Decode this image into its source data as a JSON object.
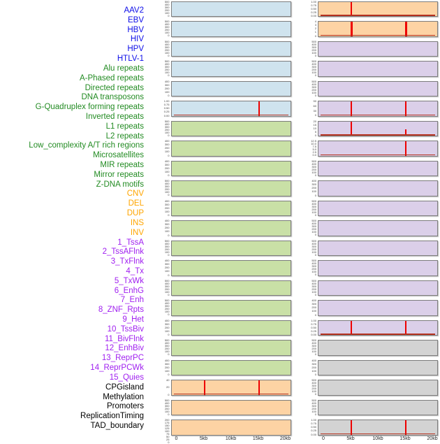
{
  "colors": {
    "label_virus": "#0d0de8",
    "label_repeat": "#228b22",
    "label_sv": "#ffa500",
    "label_chromhmm": "#a020f0",
    "label_other": "#000000",
    "panel_blue": "#cfe3ee",
    "panel_green": "#c9e0a6",
    "panel_orange": "#fdd3a4",
    "panel_purple": "#dbcfe9",
    "panel_gray": "#d3d3d3",
    "panel_border": "#7d7d7d",
    "red_marker": "#ee0000",
    "red_baseline": "#b5311f",
    "tick_text": "#3f3f3f"
  },
  "chart_data": {
    "type": "line",
    "layout": "small-multiples: 44 genomic track labels, 2 columns of 22 mini panels, one panel per 2 labels",
    "x_axis": {
      "ticks": [
        "0",
        "5kb",
        "10kb",
        "15kb",
        "20kb"
      ],
      "range_kb": [
        0,
        20
      ],
      "grid": false
    },
    "track_labels": [
      {
        "text": "AAV2",
        "group": "virus"
      },
      {
        "text": "EBV",
        "group": "virus"
      },
      {
        "text": "HBV",
        "group": "virus"
      },
      {
        "text": "HIV",
        "group": "virus"
      },
      {
        "text": "HPV",
        "group": "virus"
      },
      {
        "text": "HTLV-1",
        "group": "virus"
      },
      {
        "text": "Alu repeats",
        "group": "repeat"
      },
      {
        "text": "A-Phased repeats",
        "group": "repeat"
      },
      {
        "text": "Directed repeats",
        "group": "repeat"
      },
      {
        "text": "DNA transposons",
        "group": "repeat"
      },
      {
        "text": "G-Quadruplex forming repeats",
        "group": "repeat"
      },
      {
        "text": "Inverted repeats",
        "group": "repeat"
      },
      {
        "text": "L1 repeats",
        "group": "repeat"
      },
      {
        "text": "L2 repeats",
        "group": "repeat"
      },
      {
        "text": "Low_complexity A/T rich regions",
        "group": "repeat"
      },
      {
        "text": "Microsatellites",
        "group": "repeat"
      },
      {
        "text": "MIR repeats",
        "group": "repeat"
      },
      {
        "text": "Mirror repeats",
        "group": "repeat"
      },
      {
        "text": "Z-DNA motifs",
        "group": "repeat"
      },
      {
        "text": "CNV",
        "group": "sv"
      },
      {
        "text": "DEL",
        "group": "sv"
      },
      {
        "text": "DUP",
        "group": "sv"
      },
      {
        "text": "INS",
        "group": "sv"
      },
      {
        "text": "INV",
        "group": "sv"
      },
      {
        "text": "1_TssA",
        "group": "chromhmm"
      },
      {
        "text": "2_TssAFlnk",
        "group": "chromhmm"
      },
      {
        "text": "3_TxFlnk",
        "group": "chromhmm"
      },
      {
        "text": "4_Tx",
        "group": "chromhmm"
      },
      {
        "text": "5_TxWk",
        "group": "chromhmm"
      },
      {
        "text": "6_EnhG",
        "group": "chromhmm"
      },
      {
        "text": "7_Enh",
        "group": "chromhmm"
      },
      {
        "text": "8_ZNF_Rpts",
        "group": "chromhmm"
      },
      {
        "text": "9_Het",
        "group": "chromhmm"
      },
      {
        "text": "10_TssBiv",
        "group": "chromhmm"
      },
      {
        "text": "11_BivFlnk",
        "group": "chromhmm"
      },
      {
        "text": "12_EnhBiv",
        "group": "chromhmm"
      },
      {
        "text": "13_ReprPC",
        "group": "chromhmm"
      },
      {
        "text": "14_ReprPCWk",
        "group": "chromhmm"
      },
      {
        "text": "15_Quies",
        "group": "chromhmm"
      },
      {
        "text": "CPGisland",
        "group": "other"
      },
      {
        "text": "Methylation",
        "group": "other"
      },
      {
        "text": "Promoters",
        "group": "other"
      },
      {
        "text": "ReplicationTiming",
        "group": "other"
      },
      {
        "text": "TAD_boundary",
        "group": "other"
      }
    ],
    "columns": [
      {
        "id": "left",
        "panels": [
          {
            "bg": "blue",
            "yticks": [
              "500",
              "400",
              "300",
              "200",
              "100",
              "0"
            ],
            "markers": [],
            "baseline": false
          },
          {
            "bg": "blue",
            "yticks": [
              "500",
              "400",
              "300",
              "200",
              "100",
              "0"
            ],
            "markers": [],
            "baseline": false
          },
          {
            "bg": "blue",
            "yticks": [
              "500",
              "400",
              "300",
              "200",
              "100",
              "0"
            ],
            "markers": [],
            "baseline": false
          },
          {
            "bg": "blue",
            "yticks": [
              "500",
              "400",
              "300",
              "200",
              "100",
              "0"
            ],
            "markers": [],
            "baseline": false
          },
          {
            "bg": "blue",
            "yticks": [
              "400",
              "300",
              "200",
              "100",
              "0"
            ],
            "markers": [],
            "baseline": false
          },
          {
            "bg": "blue",
            "yticks": [
              "1.00",
              "0.75",
              "0.50",
              "0.25",
              "0.00"
            ],
            "markers": [
              {
                "kb": 15,
                "height_frac": 1
              }
            ],
            "baseline": true
          },
          {
            "bg": "green",
            "yticks": [
              "500",
              "400",
              "300",
              "200",
              "100",
              "0"
            ],
            "markers": [],
            "baseline": false
          },
          {
            "bg": "green",
            "yticks": [
              "400",
              "300",
              "200",
              "100",
              "0"
            ],
            "markers": [],
            "baseline": false
          },
          {
            "bg": "green",
            "yticks": [
              "400",
              "300",
              "200",
              "100",
              "0"
            ],
            "markers": [],
            "baseline": false
          },
          {
            "bg": "green",
            "yticks": [
              "500",
              "400",
              "300",
              "200",
              "100",
              "0"
            ],
            "markers": [],
            "baseline": false
          },
          {
            "bg": "green",
            "yticks": [
              "400",
              "300",
              "200",
              "100",
              "0"
            ],
            "markers": [],
            "baseline": false
          },
          {
            "bg": "green",
            "yticks": [
              "400",
              "300",
              "200",
              "100",
              "0"
            ],
            "markers": [],
            "baseline": false
          },
          {
            "bg": "green",
            "yticks": [
              "500",
              "400",
              "300",
              "200",
              "100",
              "0"
            ],
            "markers": [],
            "baseline": false
          },
          {
            "bg": "green",
            "yticks": [
              "400",
              "300",
              "200",
              "100",
              "0"
            ],
            "markers": [],
            "baseline": false
          },
          {
            "bg": "green",
            "yticks": [
              "500",
              "400",
              "300",
              "200",
              "100",
              "0"
            ],
            "markers": [],
            "baseline": false
          },
          {
            "bg": "green",
            "yticks": [
              "500",
              "400",
              "300",
              "200",
              "100",
              "0"
            ],
            "markers": [],
            "baseline": false
          },
          {
            "bg": "green",
            "yticks": [
              "400",
              "300",
              "200",
              "100",
              "0"
            ],
            "markers": [],
            "baseline": false
          },
          {
            "bg": "green",
            "yticks": [
              "500",
              "400",
              "300",
              "200",
              "100",
              "0"
            ],
            "markers": [],
            "baseline": false
          },
          {
            "bg": "green",
            "yticks": [
              "400",
              "300",
              "200",
              "100",
              "0"
            ],
            "markers": [],
            "baseline": false
          },
          {
            "bg": "orange",
            "yticks": [
              "40",
              "20",
              "0"
            ],
            "markers": [
              {
                "kb": 5,
                "height_frac": 1
              },
              {
                "kb": 15,
                "height_frac": 1
              }
            ],
            "baseline": true
          },
          {
            "bg": "orange",
            "yticks": [
              "500",
              "400",
              "300",
              "200",
              "100",
              "0"
            ],
            "markers": [],
            "baseline": false
          },
          {
            "bg": "orange",
            "yticks": [
              "200",
              "175",
              "150",
              "125",
              "100",
              "75",
              "50",
              "25",
              "0"
            ],
            "markers": [],
            "baseline": false
          }
        ]
      },
      {
        "id": "right",
        "panels": [
          {
            "bg": "orange",
            "yticks": [
              "1.00",
              "0.75",
              "0.50",
              "0.25",
              "0.00"
            ],
            "markers": [
              {
                "kb": 5,
                "height_frac": 1
              }
            ],
            "baseline": true
          },
          {
            "bg": "orange",
            "yticks": [
              "4",
              "3",
              "2",
              "1",
              "0"
            ],
            "markers": [
              {
                "kb": 5,
                "height_frac": 1,
                "thick": true
              },
              {
                "kb": 15,
                "height_frac": 1,
                "thick": true
              }
            ],
            "baseline": true
          },
          {
            "bg": "purple",
            "yticks": [
              "500",
              "400",
              "300",
              "200",
              "100",
              "0"
            ],
            "markers": [],
            "baseline": false
          },
          {
            "bg": "purple",
            "yticks": [
              "500",
              "400",
              "300",
              "200",
              "100",
              "0"
            ],
            "markers": [],
            "baseline": false
          },
          {
            "bg": "purple",
            "yticks": [
              "500",
              "400",
              "300",
              "200",
              "100",
              "0"
            ],
            "markers": [],
            "baseline": false
          },
          {
            "bg": "purple",
            "yticks": [
              "90",
              "60",
              "30",
              "0"
            ],
            "markers": [
              {
                "kb": 5,
                "height_frac": 1
              },
              {
                "kb": 15,
                "height_frac": 1
              }
            ],
            "baseline": true
          },
          {
            "bg": "purple",
            "yticks": [
              "20",
              "15",
              "10",
              "5",
              "0"
            ],
            "markers": [
              {
                "kb": 5,
                "height_frac": 1
              },
              {
                "kb": 15,
                "height_frac": 0.45
              }
            ],
            "baseline": true
          },
          {
            "bg": "purple",
            "yticks": [
              "12.5",
              "10.0",
              "7.5",
              "5.0",
              "2.5",
              "0.0"
            ],
            "markers": [
              {
                "kb": 15,
                "height_frac": 1
              }
            ],
            "baseline": true
          },
          {
            "bg": "purple",
            "yticks": [
              "500",
              "400",
              "300",
              "200",
              "100",
              "0"
            ],
            "markers": [],
            "baseline": false
          },
          {
            "bg": "purple",
            "yticks": [
              "400",
              "300",
              "200",
              "100",
              "0"
            ],
            "markers": [],
            "baseline": false
          },
          {
            "bg": "purple",
            "yticks": [
              "500",
              "400",
              "300",
              "200",
              "100",
              "0"
            ],
            "markers": [],
            "baseline": false
          },
          {
            "bg": "purple",
            "yticks": [
              "500",
              "400",
              "300",
              "200",
              "100",
              "0"
            ],
            "markers": [],
            "baseline": false
          },
          {
            "bg": "purple",
            "yticks": [
              "500",
              "400",
              "300",
              "200",
              "100",
              "0"
            ],
            "markers": [],
            "baseline": false
          },
          {
            "bg": "purple",
            "yticks": [
              "500",
              "400",
              "300",
              "200",
              "100",
              "0"
            ],
            "markers": [],
            "baseline": false
          },
          {
            "bg": "purple",
            "yticks": [
              "500",
              "400",
              "300",
              "200",
              "100",
              "0"
            ],
            "markers": [],
            "baseline": false
          },
          {
            "bg": "purple",
            "yticks": [
              "400",
              "300",
              "200",
              "100",
              "0"
            ],
            "markers": [],
            "baseline": false
          },
          {
            "bg": "purple",
            "yticks": [
              "1.00",
              "0.75",
              "0.50",
              "0.25",
              "0.00"
            ],
            "markers": [
              {
                "kb": 5,
                "height_frac": 1
              },
              {
                "kb": 15,
                "height_frac": 1
              }
            ],
            "baseline": true
          },
          {
            "bg": "gray",
            "yticks": [
              "500",
              "400",
              "300",
              "200",
              "100",
              "0"
            ],
            "markers": [],
            "baseline": false
          },
          {
            "bg": "gray",
            "yticks": [
              "400",
              "300",
              "200",
              "100",
              "0"
            ],
            "markers": [],
            "baseline": false
          },
          {
            "bg": "gray",
            "yticks": [
              "500",
              "400",
              "300",
              "200",
              "100",
              "0"
            ],
            "markers": [],
            "baseline": false
          },
          {
            "bg": "gray",
            "yticks": [
              "500",
              "400",
              "300",
              "200",
              "100",
              "0"
            ],
            "markers": [],
            "baseline": false
          },
          {
            "bg": "gray",
            "yticks": [
              "1.00",
              "0.75",
              "0.50",
              "0.25",
              "0.00"
            ],
            "markers": [
              {
                "kb": 5,
                "height_frac": 1
              },
              {
                "kb": 15,
                "height_frac": 1
              }
            ],
            "baseline": true
          }
        ]
      }
    ]
  }
}
